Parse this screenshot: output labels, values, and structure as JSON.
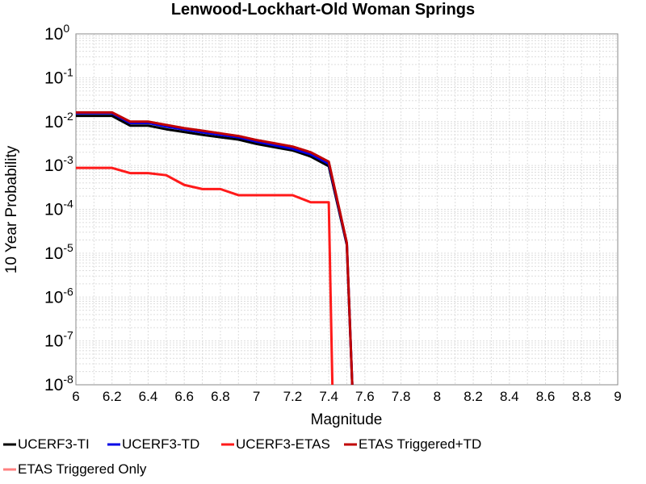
{
  "chart_data": {
    "type": "line",
    "title": "Lenwood-Lockhart-Old Woman Springs",
    "xlabel": "Magnitude",
    "ylabel": "10 Year Probability",
    "xlim": [
      6,
      9
    ],
    "ylim": [
      1e-08,
      1
    ],
    "yscale": "log",
    "grid": true,
    "legend_position": "bottom",
    "x_ticks": [
      "6",
      "6.2",
      "6.4",
      "6.6",
      "6.8",
      "7",
      "7.2",
      "7.4",
      "7.6",
      "7.8",
      "8",
      "8.2",
      "8.4",
      "8.6",
      "8.8",
      "9"
    ],
    "y_ticks": [
      {
        "base": "10",
        "exp": "-8"
      },
      {
        "base": "10",
        "exp": "-7"
      },
      {
        "base": "10",
        "exp": "-6"
      },
      {
        "base": "10",
        "exp": "-5"
      },
      {
        "base": "10",
        "exp": "-4"
      },
      {
        "base": "10",
        "exp": "-3"
      },
      {
        "base": "10",
        "exp": "-2"
      },
      {
        "base": "10",
        "exp": "-1"
      },
      {
        "base": "10",
        "exp": "0"
      }
    ],
    "series": [
      {
        "name": "UCERF3-TI",
        "color": "#000000",
        "x": [
          6.0,
          6.2,
          6.3,
          6.4,
          6.5,
          6.6,
          6.7,
          6.8,
          6.9,
          7.0,
          7.1,
          7.2,
          7.3,
          7.4,
          7.5,
          7.53
        ],
        "y": [
          0.0135,
          0.0135,
          0.0081,
          0.0081,
          0.0067,
          0.0058,
          0.005,
          0.0044,
          0.0039,
          0.0031,
          0.0026,
          0.0022,
          0.0016,
          0.00096,
          1.55e-05,
          1e-08
        ]
      },
      {
        "name": "UCERF3-TD",
        "color": "#0000e6",
        "x": [
          6.0,
          6.2,
          6.3,
          6.4,
          6.5,
          6.6,
          6.7,
          6.8,
          6.9,
          7.0,
          7.1,
          7.2,
          7.3,
          7.4,
          7.5,
          7.53
        ],
        "y": [
          0.0155,
          0.0155,
          0.0093,
          0.0093,
          0.0077,
          0.0066,
          0.0057,
          0.005,
          0.0044,
          0.0035,
          0.0029,
          0.0024,
          0.0018,
          0.0011,
          1.65e-05,
          1e-08
        ]
      },
      {
        "name": "UCERF3-ETAS",
        "color": "#ff1a1a",
        "x": [
          6.0,
          6.2,
          6.3,
          6.4,
          6.5,
          6.6,
          6.7,
          6.8,
          6.9,
          7.0,
          7.1,
          7.2,
          7.3,
          7.4,
          7.42
        ],
        "y": [
          0.00088,
          0.00088,
          0.00067,
          0.00067,
          0.0006,
          0.00036,
          0.00029,
          0.00029,
          0.00021,
          0.00021,
          0.00021,
          0.00021,
          0.000145,
          0.000145,
          1e-08
        ]
      },
      {
        "name": "ETAS Triggered+TD",
        "color": "#c00000",
        "x": [
          6.0,
          6.2,
          6.3,
          6.4,
          6.5,
          6.6,
          6.7,
          6.8,
          6.9,
          7.0,
          7.1,
          7.2,
          7.3,
          7.4,
          7.5,
          7.53
        ],
        "y": [
          0.0162,
          0.0162,
          0.01,
          0.01,
          0.0084,
          0.0071,
          0.0062,
          0.0054,
          0.0047,
          0.0038,
          0.0032,
          0.0027,
          0.002,
          0.00122,
          1.72e-05,
          1e-08
        ]
      },
      {
        "name": "ETAS Triggered Only",
        "color": "#ff8080",
        "x": [],
        "y": []
      }
    ]
  }
}
